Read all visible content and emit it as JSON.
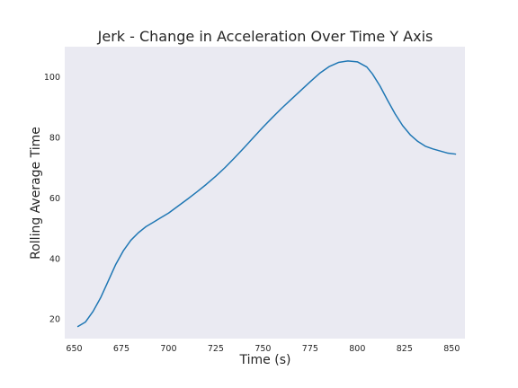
{
  "chart_data": {
    "type": "line",
    "title": "Jerk - Change in Acceleration Over Time Y Axis",
    "xlabel": "Time (s)",
    "ylabel": "Rolling Average Time",
    "xlim": [
      645,
      857
    ],
    "ylim": [
      13.5,
      110
    ],
    "xticks": [
      650,
      675,
      700,
      725,
      750,
      775,
      800,
      825,
      850
    ],
    "yticks": [
      20,
      40,
      60,
      80,
      100
    ],
    "grid": false,
    "legend": "none",
    "colors": {
      "plot_background": "#eaeaf2",
      "line": "#1f77b4",
      "text": "#262626"
    },
    "series": [
      {
        "x": [
          652,
          656,
          660,
          664,
          668,
          672,
          676,
          680,
          684,
          688,
          692,
          696,
          700,
          705,
          710,
          715,
          720,
          725,
          730,
          735,
          740,
          745,
          750,
          755,
          760,
          765,
          770,
          775,
          780,
          785,
          790,
          795,
          800,
          805,
          808,
          812,
          816,
          820,
          824,
          828,
          832,
          836,
          840,
          844,
          848,
          852
        ],
        "y": [
          17.5,
          19.0,
          22.5,
          27.0,
          32.5,
          38.0,
          42.5,
          46.0,
          48.5,
          50.5,
          52.0,
          53.5,
          55.0,
          57.3,
          59.6,
          62.0,
          64.5,
          67.2,
          70.1,
          73.3,
          76.6,
          80.0,
          83.4,
          86.6,
          89.7,
          92.6,
          95.5,
          98.4,
          101.2,
          103.4,
          104.8,
          105.3,
          105.0,
          103.3,
          101.0,
          97.0,
          92.3,
          87.8,
          83.9,
          80.9,
          78.7,
          77.1,
          76.2,
          75.5,
          74.8,
          74.5
        ]
      }
    ]
  }
}
